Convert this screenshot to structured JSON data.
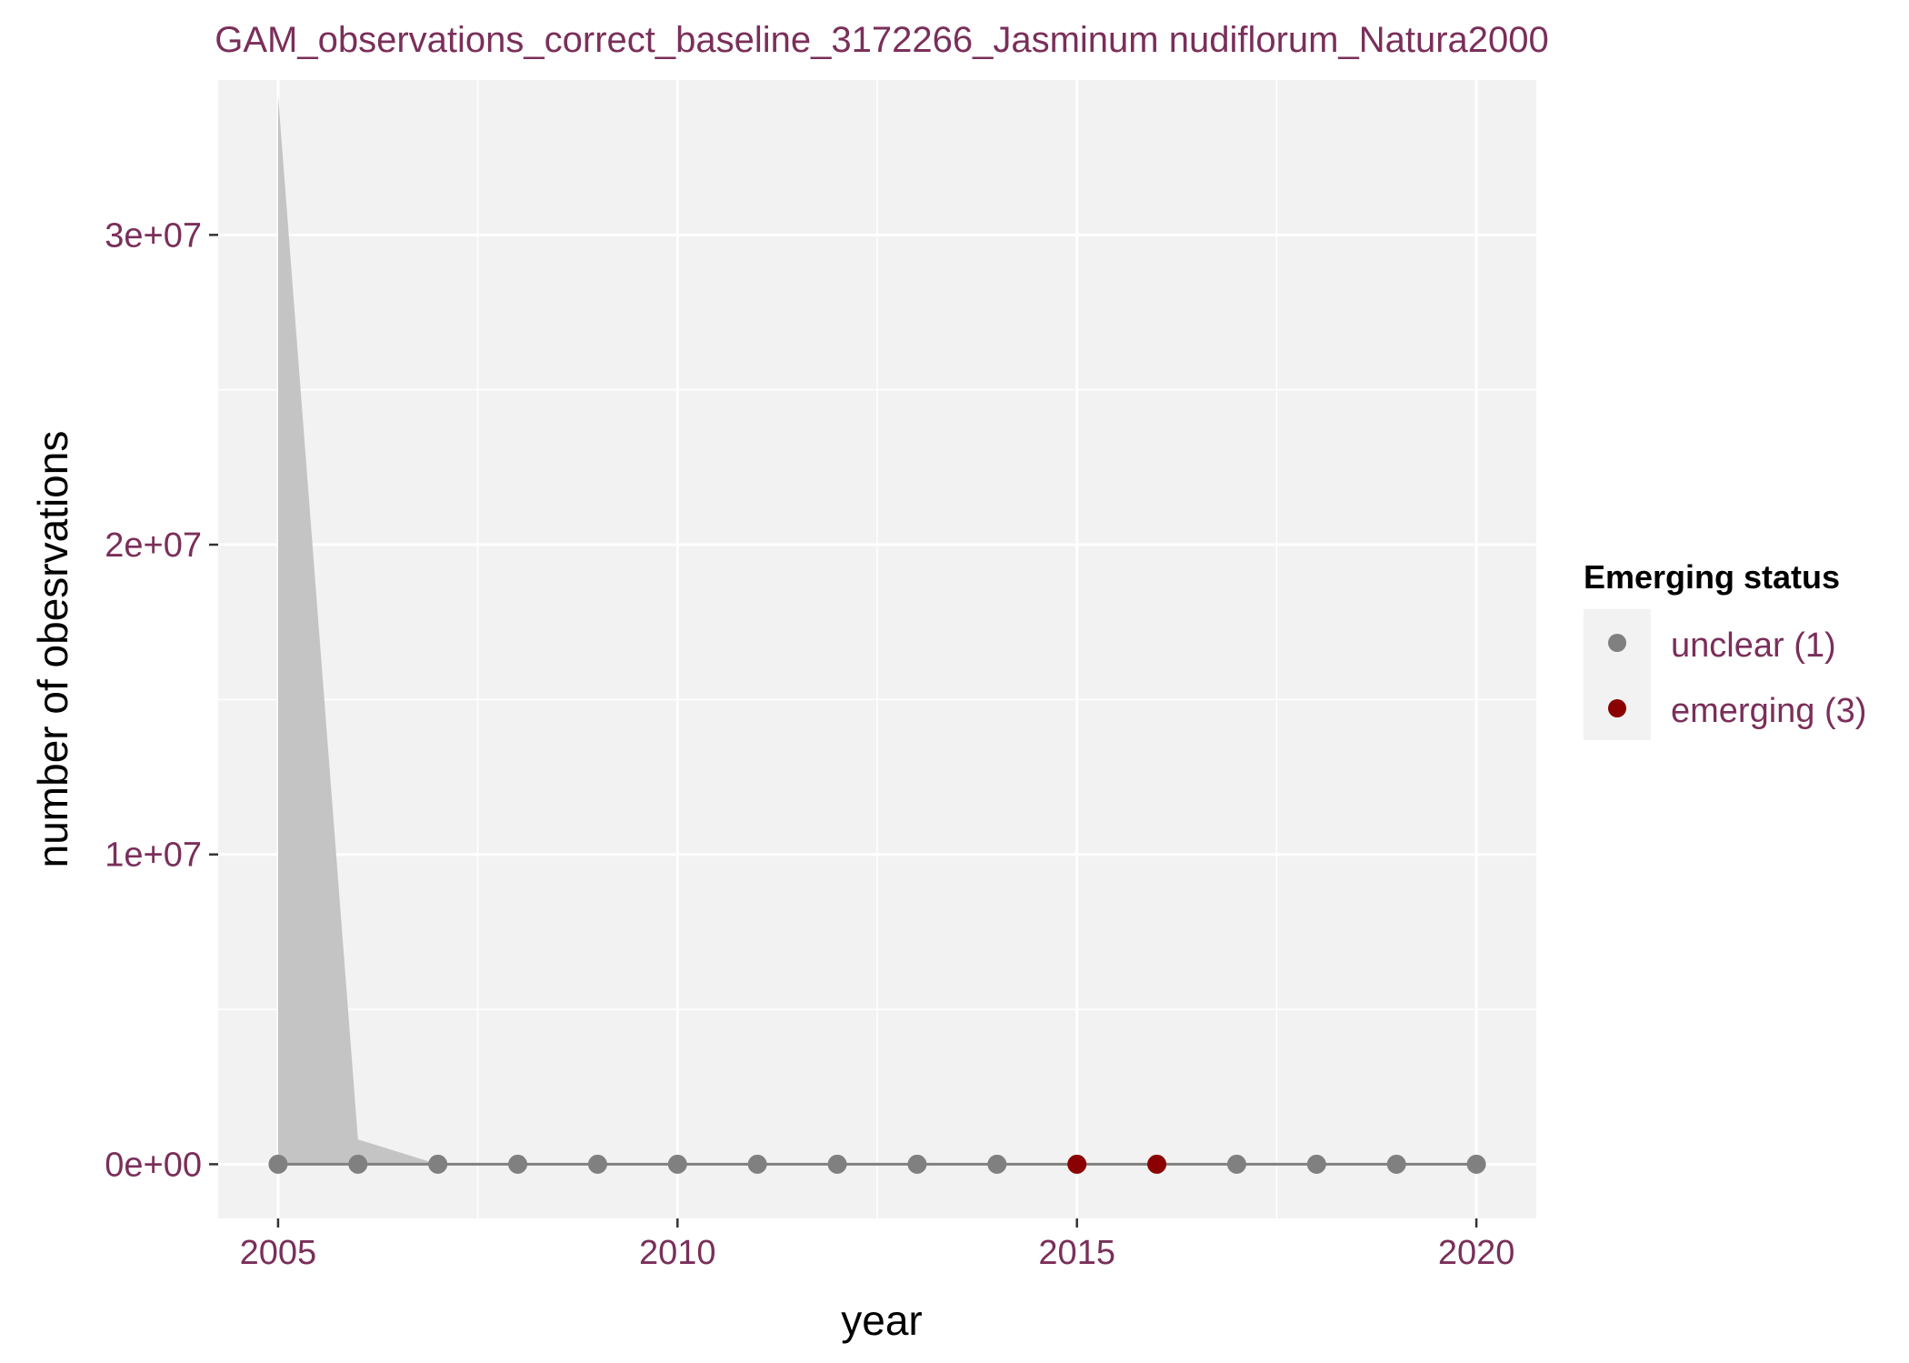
{
  "chart_data": {
    "type": "line",
    "title": "GAM_observations_correct_baseline_3172266_Jasminum nudiflorum_Natura2000",
    "xlabel": "year",
    "ylabel": "number of obesrvations",
    "xlim": [
      2004.25,
      2020.75
    ],
    "ylim": [
      -1750000,
      35000000
    ],
    "x_ticks": [
      2005,
      2010,
      2015,
      2020
    ],
    "x_tick_labels": [
      "2005",
      "2010",
      "2015",
      "2020"
    ],
    "y_ticks": [
      0,
      10000000,
      20000000,
      30000000
    ],
    "y_tick_labels": [
      "0e+00",
      "1e+07",
      "2e+07",
      "3e+07"
    ],
    "grid": true,
    "x": [
      2005,
      2006,
      2007,
      2008,
      2009,
      2010,
      2011,
      2012,
      2013,
      2014,
      2015,
      2016,
      2017,
      2018,
      2019,
      2020
    ],
    "series": [
      {
        "values": [
          0,
          0,
          0,
          0,
          0,
          0,
          0,
          0,
          0,
          0,
          0,
          0,
          0,
          0,
          0,
          0
        ],
        "status": [
          "unclear",
          "unclear",
          "unclear",
          "unclear",
          "unclear",
          "unclear",
          "unclear",
          "unclear",
          "unclear",
          "unclear",
          "emerging",
          "emerging",
          "unclear",
          "unclear",
          "unclear",
          "unclear"
        ],
        "ci_lower": [
          0,
          0,
          0,
          0,
          0,
          0,
          0,
          0,
          0,
          0,
          0,
          0,
          0,
          0,
          0,
          0
        ],
        "ci_upper": [
          34500000,
          800000,
          0,
          0,
          0,
          0,
          0,
          0,
          0,
          0,
          0,
          0,
          0,
          0,
          0,
          0
        ]
      }
    ],
    "legend": {
      "title": "Emerging status",
      "position": "right",
      "items": [
        {
          "key": "unclear",
          "label": "unclear (1)",
          "color": "#808080"
        },
        {
          "key": "emerging",
          "label": "emerging (3)",
          "color": "#8b0000"
        }
      ]
    },
    "colors": {
      "panel": "#f2f2f2",
      "grid": "#ffffff",
      "line": "#808080",
      "ribbon": "#c4c4c4",
      "text": "#7a2f5a"
    }
  }
}
